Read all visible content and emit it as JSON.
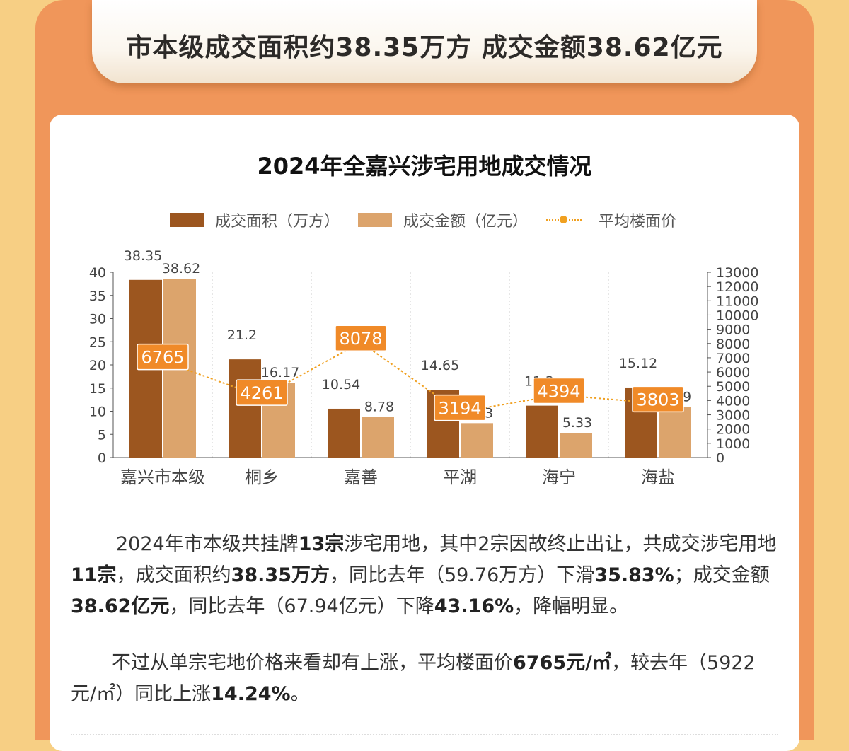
{
  "banner": {
    "title": "市本级成交面积约38.35万方 成交金额38.62亿元"
  },
  "colors": {
    "area": "#9c561f",
    "amount": "#dca46c",
    "avg_price": "#f0a020",
    "label_box": "#f08a28",
    "frame": "#f0965a",
    "background": "#f7cf84"
  },
  "chart_data": {
    "type": "bar",
    "title": "2024年全嘉兴涉宅用地成交情况",
    "categories": [
      "嘉兴市本级",
      "桐乡",
      "嘉善",
      "平湖",
      "海宁",
      "海盐"
    ],
    "series": [
      {
        "name": "成交面积（万方）",
        "kind": "bar",
        "axis": "left",
        "values": [
          38.35,
          21.2,
          10.54,
          14.65,
          11.2,
          15.12
        ]
      },
      {
        "name": "成交金额（亿元）",
        "kind": "bar",
        "axis": "left",
        "values": [
          38.62,
          16.17,
          8.78,
          7.43,
          5.33,
          10.9
        ]
      },
      {
        "name": "平均楼面价",
        "kind": "line",
        "axis": "right",
        "values": [
          6765,
          4261,
          8078,
          3194,
          4394,
          3803
        ]
      }
    ],
    "y_left": {
      "range": [
        0,
        40
      ],
      "ticks": [
        0,
        5,
        10,
        15,
        20,
        25,
        30,
        35,
        40
      ]
    },
    "y_right": {
      "range": [
        0,
        13000
      ],
      "ticks": [
        0,
        1000,
        2000,
        3000,
        4000,
        5000,
        6000,
        7000,
        8000,
        9000,
        10000,
        11000,
        12000,
        13000
      ]
    },
    "legend_position": "top",
    "grid": "vertical dotted"
  },
  "paragraphs": {
    "p1": {
      "t1": "2024年市本级共挂牌",
      "b1": "13宗",
      "t2": "涉宅用地，其中2宗因故终止出让，共成交涉宅用地",
      "b2": "11宗",
      "t3": "，成交面积约",
      "b3": "38.35万方",
      "t4": "，同比去年（59.76万方）下滑",
      "b4": "35.83%",
      "t5": "；成交金额",
      "b5": "38.62亿元",
      "t6": "，同比去年（67.94亿元）下降",
      "b6": "43.16%",
      "t7": "，降幅明显。"
    },
    "p2": {
      "t1": "不过从单宗宅地价格来看却有上涨，平均楼面价",
      "b1": "6765元/㎡",
      "t2": "，较去年（5922元/㎡）同比上涨",
      "b2": "14.24%",
      "t3": "。"
    }
  }
}
